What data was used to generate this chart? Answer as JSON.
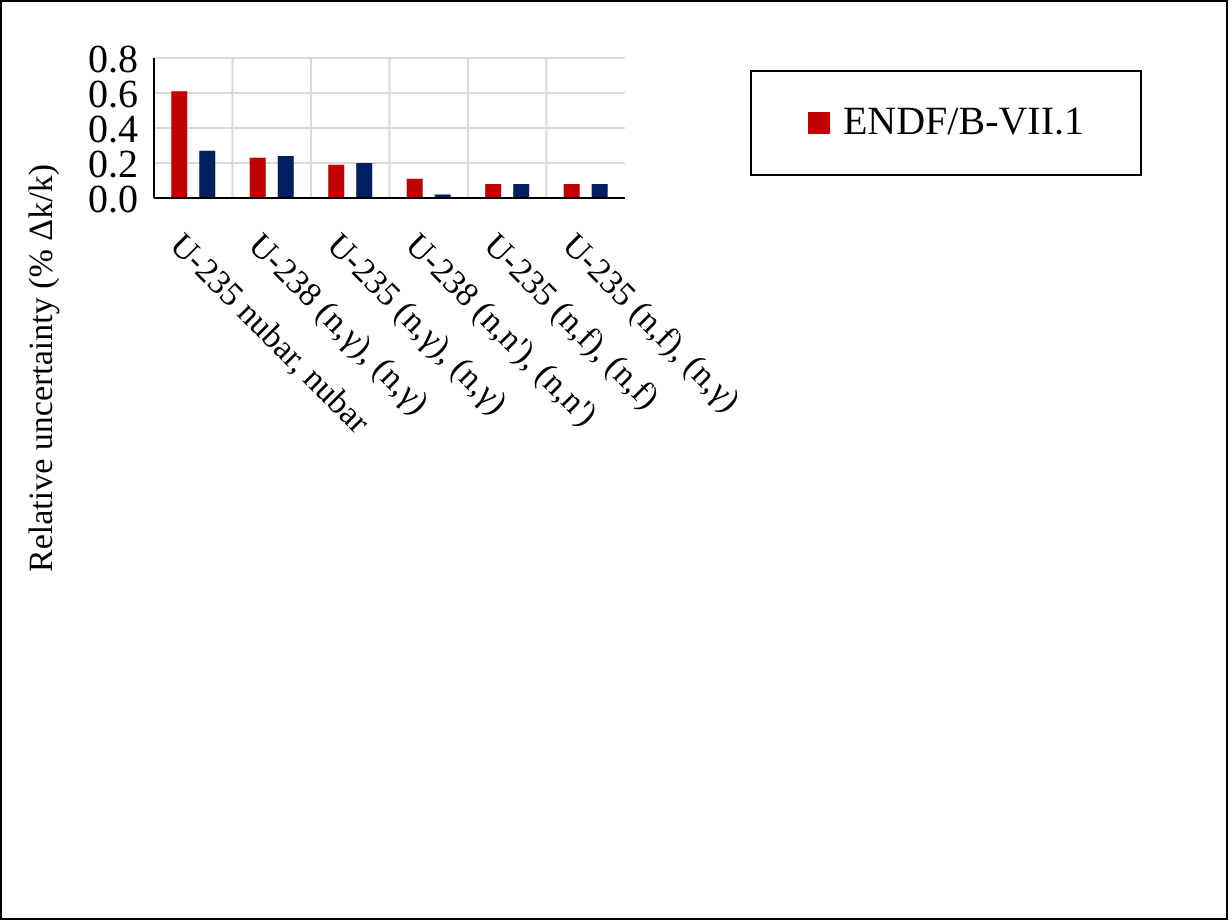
{
  "chart_data": {
    "type": "bar",
    "ylabel": "Relative uncertainty (% Δk/k)",
    "categories": [
      "U-235 nubar, nubar",
      "U-238 (n,γ), (n,γ)",
      "U-235 (n,γ), (n,γ)",
      "U-238 (n,n'), (n,n')",
      "U-235 (n,f), (n,f)",
      "U-235 (n,f), (n,γ)"
    ],
    "series": [
      {
        "name": "ENDF/B-VII.1",
        "color": "#c00000",
        "values": [
          0.61,
          0.23,
          0.19,
          0.11,
          0.08,
          0.08
        ]
      },
      {
        "color": "#002060",
        "values": [
          0.27,
          0.24,
          0.2,
          0.02,
          0.08,
          0.08
        ]
      }
    ],
    "ylim": [
      0,
      0.8
    ],
    "yticks": [
      {
        "value": 0,
        "label": "0.0"
      },
      0.2,
      0.4,
      0.6,
      0.8
    ],
    "grid": true,
    "legend": "top right"
  }
}
